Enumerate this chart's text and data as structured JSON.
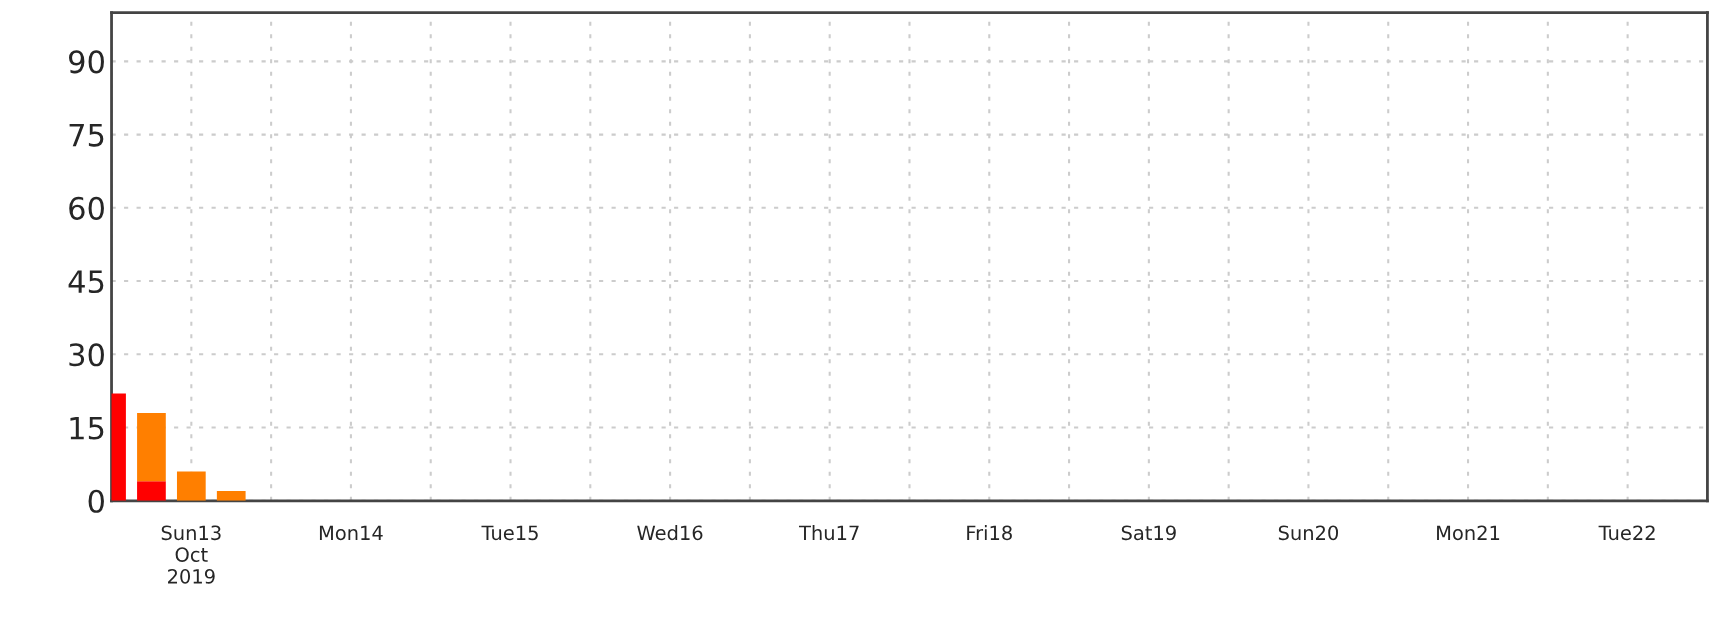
{
  "chart_data": {
    "type": "bar",
    "stacked": true,
    "x": [
      "2019-10-13T00:00",
      "2019-10-13T06:00",
      "2019-10-13T12:00",
      "2019-10-13T18:00"
    ],
    "series": [
      {
        "color": "#ff0000",
        "values": [
          22,
          4,
          0,
          0
        ]
      },
      {
        "color": "#ff7f00",
        "values": [
          0,
          14,
          6,
          2
        ]
      }
    ],
    "xlim": [
      "2019-10-13",
      "2019-10-23"
    ],
    "xticks": [
      {
        "value": "2019-10-13",
        "label": null
      },
      {
        "value": "2019-10-13T12:00",
        "label": "Sun13\nOct\n2019"
      },
      {
        "value": "2019-10-14",
        "label": null
      },
      {
        "value": "2019-10-14T12:00",
        "label": "Mon14"
      },
      {
        "value": "2019-10-15",
        "label": null
      },
      {
        "value": "2019-10-15T12:00",
        "label": "Tue15"
      },
      {
        "value": "2019-10-16",
        "label": null
      },
      {
        "value": "2019-10-16T12:00",
        "label": "Wed16"
      },
      {
        "value": "2019-10-17",
        "label": null
      },
      {
        "value": "2019-10-17T12:00",
        "label": "Thu17"
      },
      {
        "value": "2019-10-18",
        "label": null
      },
      {
        "value": "2019-10-18T12:00",
        "label": "Fri18"
      },
      {
        "value": "2019-10-19",
        "label": null
      },
      {
        "value": "2019-10-19T12:00",
        "label": "Sat19"
      },
      {
        "value": "2019-10-20",
        "label": null
      },
      {
        "value": "2019-10-20T12:00",
        "label": "Sun20"
      },
      {
        "value": "2019-10-21",
        "label": null
      },
      {
        "value": "2019-10-21T12:00",
        "label": "Mon21"
      },
      {
        "value": "2019-10-22",
        "label": null
      },
      {
        "value": "2019-10-22T12:00",
        "label": "Tue22"
      },
      {
        "value": "2019-10-23",
        "label": null
      }
    ],
    "ylim": [
      0,
      100
    ],
    "yticks": [
      0,
      15,
      30,
      45,
      60,
      75,
      90
    ],
    "grid": true
  }
}
